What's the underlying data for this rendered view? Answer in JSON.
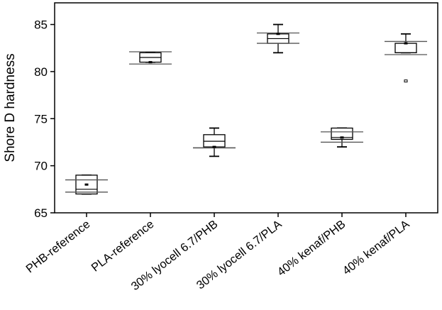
{
  "chart_data": {
    "type": "box",
    "ylabel": "Shore D hardness",
    "xlabel": "",
    "ylim": [
      65,
      87.3
    ],
    "y_ticks": [
      65,
      70,
      75,
      80,
      85
    ],
    "y_tick_labels": [
      "65",
      "70",
      "75",
      "80",
      "85"
    ],
    "grid": false,
    "categories": [
      "PHB-reference",
      "PLA-reference",
      "30% lyocell 6.7/PHB",
      "30% lyocell 6.7/PLA",
      "40% kenaf/PHB",
      "40% kenaf/PLA"
    ],
    "boxes": [
      {
        "whisker_low": 67.0,
        "q1": 67.0,
        "median": 67.5,
        "q3": 69.0,
        "whisker_high": 69.0,
        "mean": 68.0,
        "ci_low": 67.2,
        "ci_high": 68.5,
        "outliers": []
      },
      {
        "whisker_low": 81.0,
        "q1": 81.0,
        "median": 81.5,
        "q3": 82.0,
        "whisker_high": 82.0,
        "mean": 81.0,
        "ci_low": 80.8,
        "ci_high": 82.1,
        "outliers": []
      },
      {
        "whisker_low": 71.0,
        "q1": 72.0,
        "median": 72.6,
        "q3": 73.3,
        "whisker_high": 74.0,
        "mean": 72.0,
        "ci_low": 71.9,
        "ci_high": 71.9,
        "outliers": []
      },
      {
        "whisker_low": 82.0,
        "q1": 83.0,
        "median": 83.5,
        "q3": 84.0,
        "whisker_high": 85.0,
        "mean": 84.0,
        "ci_low": 83.0,
        "ci_high": 84.1,
        "outliers": []
      },
      {
        "whisker_low": 72.0,
        "q1": 72.8,
        "median": 73.0,
        "q3": 74.0,
        "whisker_high": 74.0,
        "mean": 73.0,
        "ci_low": 72.5,
        "ci_high": 73.6,
        "outliers": []
      },
      {
        "whisker_low": 82.0,
        "q1": 82.0,
        "median": 82.0,
        "q3": 83.0,
        "whisker_high": 84.0,
        "mean": 83.0,
        "ci_low": 81.8,
        "ci_high": 83.2,
        "outliers": [
          79.0
        ]
      }
    ]
  }
}
